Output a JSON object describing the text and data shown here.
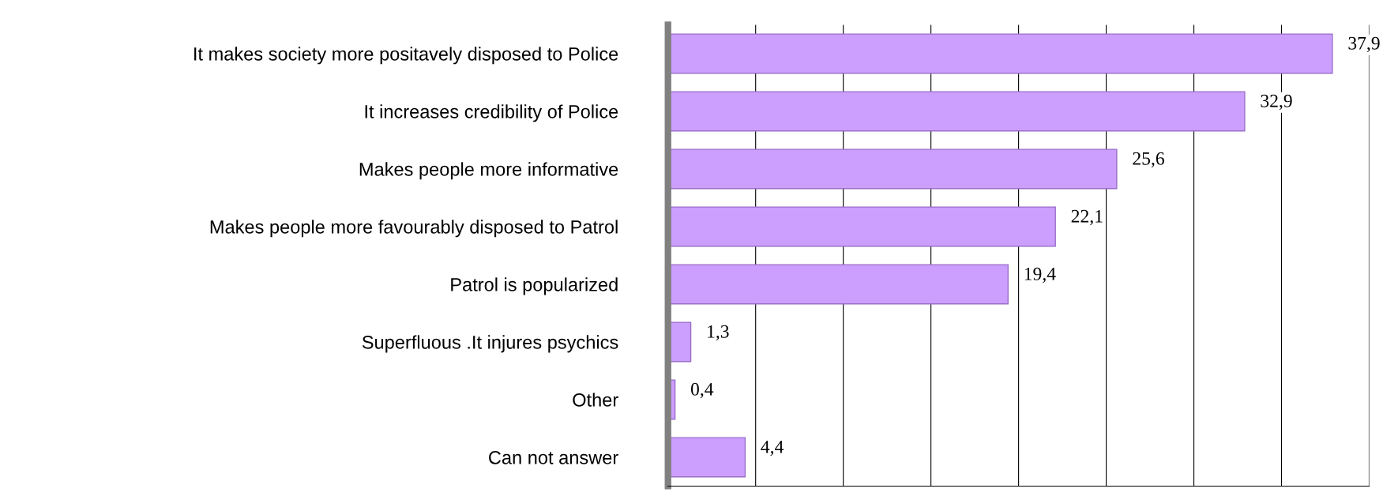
{
  "chart_data": {
    "type": "bar",
    "orientation": "horizontal",
    "categories": [
      "It makes society more positavely disposed to Police",
      "It increases credibility of Police",
      "Makes people more informative",
      "Makes people more favourably disposed to Patrol",
      "Patrol is popularized",
      "Superfluous .It injures psychics",
      "Other",
      "Can not answer"
    ],
    "values": [
      37.9,
      32.9,
      25.6,
      22.1,
      19.4,
      1.3,
      0.4,
      4.4
    ],
    "value_labels": [
      "37,9",
      "32,9",
      "25,6",
      "22,1",
      "19,4",
      "1,3",
      "0,4",
      "4,4"
    ],
    "color": "#cc9fff",
    "xlim": [
      0,
      40
    ],
    "xticks": [
      {
        "value": 0,
        "label": null
      },
      {
        "value": 5,
        "label": null
      },
      {
        "value": 10,
        "label": null
      },
      {
        "value": 15,
        "label": null
      },
      {
        "value": 20,
        "label": null
      },
      {
        "value": 25,
        "label": null
      },
      {
        "value": 30,
        "label": null
      },
      {
        "value": 35,
        "label": null
      },
      {
        "value": 40,
        "label": null
      }
    ],
    "grid": "x",
    "tick_labels": "y"
  }
}
